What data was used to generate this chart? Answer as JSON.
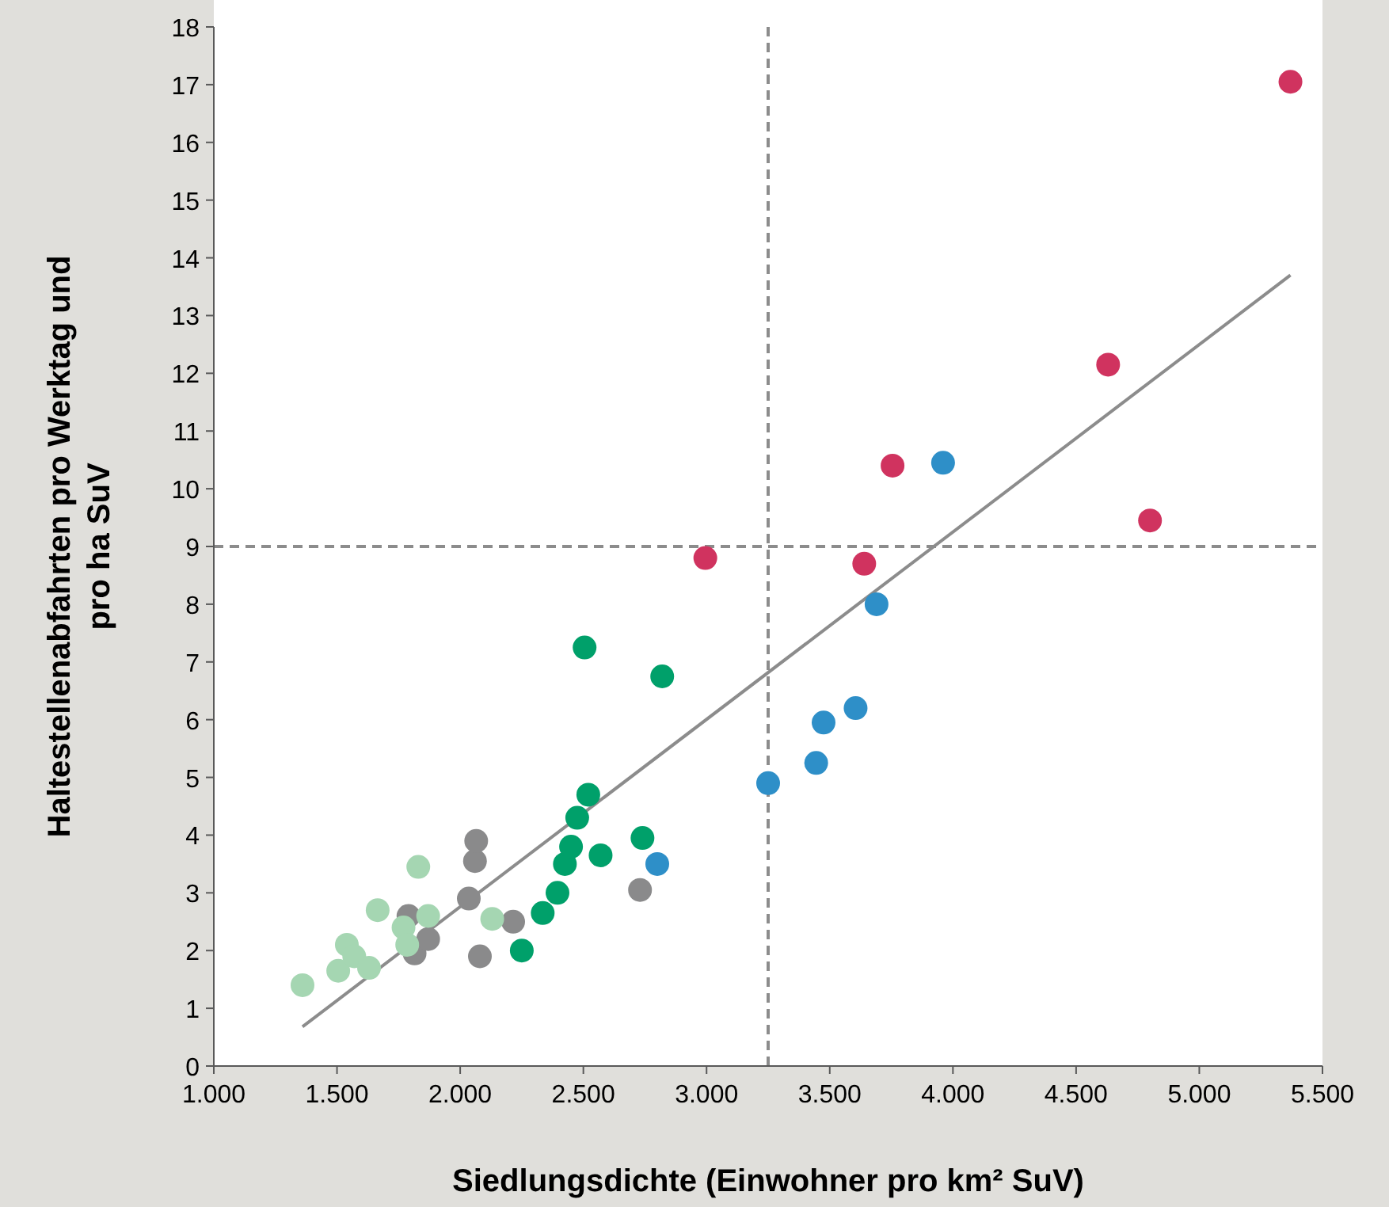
{
  "chart_data": {
    "type": "scatter",
    "xlabel": "Siedlungsdichte (Einwohner pro km² SuV)",
    "ylabel": "Haltestellenabfahrten pro Werktag und pro ha SuV",
    "xlim": [
      1000,
      5500
    ],
    "xticks": [
      {
        "value": 1000,
        "label": "1.000"
      },
      {
        "value": 1500,
        "label": "1.500"
      },
      {
        "value": 2000,
        "label": "2.000"
      },
      {
        "value": 2500,
        "label": "2.500"
      },
      {
        "value": 3000,
        "label": "3.000"
      },
      {
        "value": 3500,
        "label": "3.500"
      },
      {
        "value": 4000,
        "label": "4.000"
      },
      {
        "value": 4500,
        "label": "4.500"
      },
      {
        "value": 5000,
        "label": "5.000"
      },
      {
        "value": 5500,
        "label": "5.500"
      }
    ],
    "ylim": [
      0,
      18
    ],
    "yticks": [
      0,
      1,
      2,
      3,
      4,
      5,
      6,
      7,
      8,
      9,
      10,
      11,
      12,
      13,
      14,
      15,
      16,
      17,
      18
    ],
    "marker": "circle",
    "grid": false,
    "series": [
      {
        "color": "#a5d6b2",
        "x": [
          1360,
          1505,
          1540,
          1570,
          1630,
          1665,
          1770,
          1785,
          1830,
          1870,
          2130
        ],
        "values": [
          1.4,
          1.65,
          2.1,
          1.9,
          1.7,
          2.7,
          2.4,
          2.1,
          3.45,
          2.6,
          2.55
        ]
      },
      {
        "color": "#8a8a8b",
        "x": [
          1790,
          1815,
          1870,
          2035,
          2060,
          2065,
          2080,
          2215,
          2730
        ],
        "values": [
          2.6,
          1.95,
          2.2,
          2.9,
          3.55,
          3.9,
          1.9,
          2.5,
          3.05
        ]
      },
      {
        "color": "#00a06a",
        "x": [
          2250,
          2335,
          2395,
          2425,
          2450,
          2570,
          2475,
          2520,
          2740,
          2505,
          2820
        ],
        "values": [
          2.0,
          2.65,
          3.0,
          3.5,
          3.8,
          3.65,
          4.3,
          4.7,
          3.95,
          7.25,
          6.75
        ]
      },
      {
        "color": "#2e8fc8",
        "x": [
          2800,
          3250,
          3445,
          3475,
          3605,
          3690,
          3960
        ],
        "values": [
          3.5,
          4.9,
          5.25,
          5.95,
          6.2,
          8.0,
          10.45
        ]
      },
      {
        "color": "#d0335f",
        "x": [
          2995,
          3640,
          3755,
          4630,
          4800,
          5370
        ],
        "values": [
          8.8,
          8.7,
          10.4,
          12.15,
          9.45,
          17.05
        ]
      },
      {
        "type": "line",
        "color": "#8c8c8c",
        "line_style": "solid",
        "marker": "none",
        "x": [
          1360,
          5370
        ],
        "values": [
          0.68,
          13.7
        ]
      }
    ],
    "ref_lines": [
      {
        "axis": "x",
        "value": 3250,
        "color": "#8c8c8c",
        "line_style": "dashed"
      },
      {
        "axis": "y",
        "value": 9,
        "color": "#8c8c8c",
        "line_style": "dashed"
      }
    ]
  }
}
